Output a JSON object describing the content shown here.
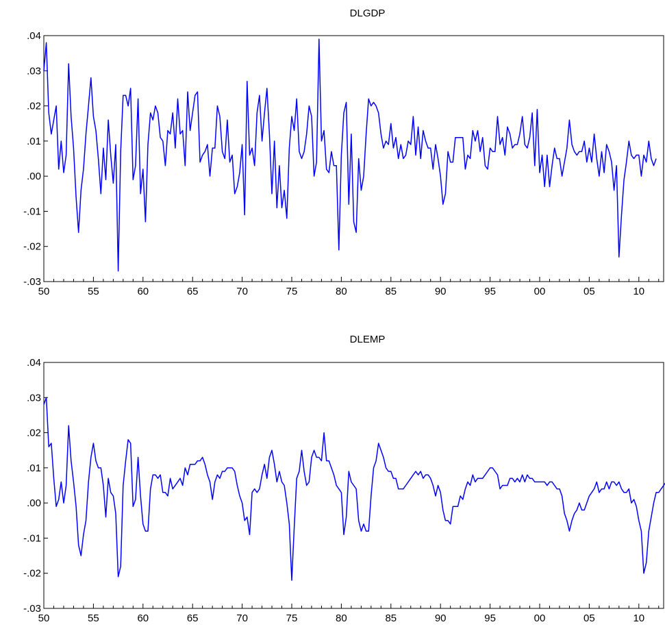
{
  "chart_data": [
    {
      "type": "line",
      "title": "DLGDP",
      "xlabel": "",
      "ylabel": "",
      "xlim": [
        1950.0,
        2012.5
      ],
      "ylim": [
        -0.03,
        0.04
      ],
      "yticks": [
        ".04",
        ".03",
        ".02",
        ".01",
        ".00",
        "-.01",
        "-.02",
        "-.03"
      ],
      "xticks": [
        "50",
        "55",
        "60",
        "65",
        "70",
        "75",
        "80",
        "85",
        "90",
        "95",
        "00",
        "05",
        "10"
      ],
      "grid": false,
      "line_color": "#0000ff",
      "series": [
        {
          "x_start": 1950.0,
          "x_step": 0.25,
          "values": [
            0.03,
            0.038,
            0.018,
            0.012,
            0.016,
            0.02,
            0.002,
            0.01,
            0.001,
            0.006,
            0.032,
            0.017,
            0.008,
            -0.006,
            -0.016,
            -0.004,
            0.002,
            0.012,
            0.02,
            0.028,
            0.017,
            0.013,
            0.005,
            -0.005,
            0.008,
            -0.001,
            0.016,
            0.006,
            -0.002,
            0.009,
            -0.027,
            0.007,
            0.023,
            0.023,
            0.02,
            0.025,
            -0.001,
            0.003,
            0.022,
            -0.005,
            0.002,
            -0.013,
            0.009,
            0.018,
            0.016,
            0.02,
            0.018,
            0.011,
            0.01,
            0.003,
            0.013,
            0.012,
            0.018,
            0.008,
            0.022,
            0.012,
            0.013,
            0.003,
            0.024,
            0.013,
            0.018,
            0.023,
            0.024,
            0.004,
            0.006,
            0.007,
            0.009,
            0.0,
            0.008,
            0.008,
            0.02,
            0.017,
            0.007,
            0.005,
            0.016,
            0.004,
            0.006,
            -0.005,
            -0.003,
            0.001,
            0.009,
            -0.011,
            0.027,
            0.006,
            0.008,
            0.003,
            0.018,
            0.023,
            0.01,
            0.018,
            0.025,
            0.012,
            -0.005,
            0.01,
            -0.009,
            0.003,
            -0.009,
            -0.004,
            -0.012,
            0.008,
            0.017,
            0.013,
            0.022,
            0.007,
            0.005,
            0.007,
            0.012,
            0.02,
            0.017,
            0.0,
            0.004,
            0.039,
            0.01,
            0.013,
            0.002,
            0.001,
            0.007,
            0.003,
            0.003,
            -0.021,
            0.006,
            0.018,
            0.021,
            -0.008,
            0.012,
            -0.013,
            -0.016,
            0.005,
            -0.004,
            0.0,
            0.012,
            0.022,
            0.02,
            0.021,
            0.02,
            0.018,
            0.012,
            0.008,
            0.01,
            0.009,
            0.015,
            0.008,
            0.011,
            0.005,
            0.009,
            0.005,
            0.006,
            0.01,
            0.009,
            0.017,
            0.006,
            0.014,
            0.005,
            0.013,
            0.01,
            0.008,
            0.008,
            0.002,
            0.009,
            0.005,
            0.0,
            -0.008,
            -0.005,
            0.007,
            0.004,
            0.004,
            0.011,
            0.011,
            0.011,
            0.011,
            0.002,
            0.006,
            0.005,
            0.013,
            0.01,
            0.013,
            0.007,
            0.011,
            0.003,
            0.002,
            0.008,
            0.007,
            0.007,
            0.017,
            0.009,
            0.011,
            0.006,
            0.014,
            0.012,
            0.008,
            0.009,
            0.009,
            0.012,
            0.017,
            0.009,
            0.008,
            0.011,
            0.018,
            0.003,
            0.019,
            0.001,
            0.006,
            -0.003,
            0.006,
            -0.003,
            0.003,
            0.008,
            0.005,
            0.005,
            0.0,
            0.004,
            0.008,
            0.016,
            0.009,
            0.007,
            0.006,
            0.007,
            0.007,
            0.01,
            0.004,
            0.008,
            0.004,
            0.012,
            0.005,
            0.0,
            0.007,
            0.001,
            0.009,
            0.007,
            0.004,
            -0.004,
            0.003,
            -0.023,
            -0.011,
            -0.001,
            0.004,
            0.01,
            0.006,
            0.005,
            0.006,
            0.006,
            0.0,
            0.006,
            0.004,
            0.01,
            0.005,
            0.003,
            0.005
          ]
        }
      ]
    },
    {
      "type": "line",
      "title": "DLEMP",
      "xlabel": "",
      "ylabel": "",
      "xlim": [
        1950.0,
        2012.5
      ],
      "ylim": [
        -0.03,
        0.04
      ],
      "yticks": [
        ".04",
        ".03",
        ".02",
        ".01",
        ".00",
        "-.01",
        "-.02",
        "-.03"
      ],
      "xticks": [
        "50",
        "55",
        "60",
        "65",
        "70",
        "75",
        "80",
        "85",
        "90",
        "95",
        "00",
        "05",
        "10"
      ],
      "grid": false,
      "line_color": "#0000ff",
      "series": [
        {
          "x_start": 1950.0,
          "x_step": 0.25,
          "values": [
            0.028,
            0.03,
            0.016,
            0.017,
            0.007,
            -0.001,
            0.001,
            0.006,
            0.0,
            0.005,
            0.022,
            0.012,
            0.006,
            -0.001,
            -0.012,
            -0.015,
            -0.009,
            -0.005,
            0.006,
            0.013,
            0.017,
            0.012,
            0.01,
            0.01,
            0.005,
            -0.004,
            0.007,
            0.003,
            0.002,
            -0.003,
            -0.021,
            -0.018,
            0.005,
            0.012,
            0.018,
            0.017,
            -0.001,
            0.001,
            0.013,
            0.002,
            -0.006,
            -0.008,
            -0.008,
            0.004,
            0.008,
            0.008,
            0.007,
            0.008,
            0.003,
            0.003,
            0.002,
            0.007,
            0.004,
            0.005,
            0.006,
            0.007,
            0.005,
            0.01,
            0.008,
            0.011,
            0.011,
            0.011,
            0.012,
            0.012,
            0.013,
            0.011,
            0.008,
            0.006,
            0.001,
            0.006,
            0.008,
            0.007,
            0.009,
            0.009,
            0.01,
            0.01,
            0.01,
            0.009,
            0.005,
            0.002,
            0.0,
            -0.005,
            -0.004,
            -0.009,
            0.003,
            0.004,
            0.003,
            0.004,
            0.008,
            0.011,
            0.007,
            0.013,
            0.015,
            0.011,
            0.006,
            0.009,
            0.006,
            0.005,
            0.0,
            -0.006,
            -0.022,
            -0.007,
            0.007,
            0.009,
            0.015,
            0.009,
            0.005,
            0.006,
            0.013,
            0.015,
            0.013,
            0.013,
            0.012,
            0.02,
            0.012,
            0.012,
            0.01,
            0.008,
            0.005,
            0.004,
            0.003,
            -0.009,
            -0.004,
            0.009,
            0.006,
            0.005,
            0.004,
            -0.005,
            -0.008,
            -0.006,
            -0.008,
            -0.008,
            0.002,
            0.01,
            0.012,
            0.017,
            0.015,
            0.013,
            0.01,
            0.009,
            0.009,
            0.007,
            0.007,
            0.004,
            0.004,
            0.004,
            0.005,
            0.006,
            0.007,
            0.008,
            0.009,
            0.008,
            0.009,
            0.007,
            0.008,
            0.008,
            0.007,
            0.005,
            0.002,
            0.005,
            0.003,
            -0.002,
            -0.005,
            -0.005,
            -0.006,
            -0.001,
            -0.001,
            -0.001,
            0.002,
            0.001,
            0.004,
            0.006,
            0.005,
            0.008,
            0.006,
            0.007,
            0.007,
            0.007,
            0.008,
            0.009,
            0.01,
            0.01,
            0.009,
            0.008,
            0.004,
            0.005,
            0.005,
            0.005,
            0.007,
            0.007,
            0.006,
            0.007,
            0.006,
            0.008,
            0.006,
            0.008,
            0.007,
            0.007,
            0.006,
            0.006,
            0.006,
            0.006,
            0.006,
            0.005,
            0.006,
            0.006,
            0.005,
            0.004,
            0.004,
            0.002,
            -0.003,
            -0.005,
            -0.008,
            -0.005,
            -0.003,
            -0.002,
            0.0,
            -0.002,
            -0.002,
            0.0,
            0.002,
            0.003,
            0.004,
            0.006,
            0.003,
            0.004,
            0.004,
            0.006,
            0.004,
            0.006,
            0.006,
            0.005,
            0.006,
            0.004,
            0.003,
            0.003,
            0.004,
            0.0,
            0.001,
            -0.001,
            -0.005,
            -0.008,
            -0.02,
            -0.017,
            -0.008,
            -0.004,
            0.0,
            0.003,
            0.003,
            0.004,
            0.005,
            0.006,
            0.004,
            0.005,
            0.006,
            0.003,
            0.003
          ]
        }
      ]
    }
  ]
}
